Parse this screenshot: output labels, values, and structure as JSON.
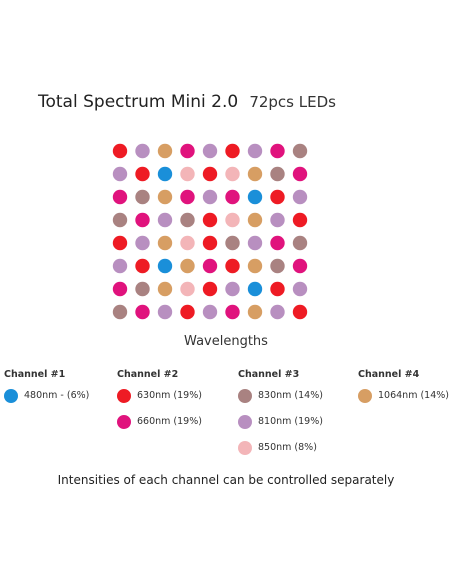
{
  "title": {
    "main": "Total Spectrum Mini 2.0",
    "sub": "72pcs LEDs"
  },
  "colors": {
    "480": "#1a8fd9",
    "630": "#ee1b24",
    "660": "#e0137d",
    "830": "#a98281",
    "810": "#b88fc0",
    "850": "#f3b5b8",
    "1064": "#d79e63"
  },
  "led_grid": [
    [
      "630",
      "810",
      "1064",
      "660",
      "810",
      "630",
      "810",
      "660",
      "830"
    ],
    [
      "810",
      "630",
      "480",
      "850",
      "630",
      "850",
      "1064",
      "830",
      "660"
    ],
    [
      "660",
      "830",
      "1064",
      "660",
      "810",
      "660",
      "480",
      "630",
      "810"
    ],
    [
      "830",
      "660",
      "810",
      "830",
      "630",
      "850",
      "1064",
      "810",
      "630"
    ],
    [
      "630",
      "810",
      "1064",
      "850",
      "630",
      "830",
      "810",
      "660",
      "830"
    ],
    [
      "810",
      "630",
      "480",
      "1064",
      "660",
      "630",
      "1064",
      "830",
      "660"
    ],
    [
      "660",
      "830",
      "1064",
      "850",
      "630",
      "810",
      "480",
      "630",
      "810"
    ],
    [
      "830",
      "660",
      "810",
      "630",
      "810",
      "660",
      "1064",
      "810",
      "630"
    ]
  ],
  "wavelengths_label": "Wavelengths",
  "channels": [
    {
      "title": "Channel #1",
      "items": [
        {
          "label": "480nm - (6%)",
          "color": "#1a8fd9"
        }
      ]
    },
    {
      "title": "Channel #2",
      "items": [
        {
          "label": "630nm (19%)",
          "color": "#ee1b24"
        },
        {
          "label": "660nm (19%)",
          "color": "#e0137d"
        }
      ]
    },
    {
      "title": "Channel #3",
      "items": [
        {
          "label": "830nm (14%)",
          "color": "#a98281"
        },
        {
          "label": "810nm (19%)",
          "color": "#b88fc0"
        },
        {
          "label": "850nm (8%)",
          "color": "#f3b5b8"
        }
      ]
    },
    {
      "title": "Channel #4",
      "items": [
        {
          "label": "1064nm (14%)",
          "color": "#d79e63"
        }
      ]
    }
  ],
  "footer": "Intensities of each channel can be controlled separately"
}
